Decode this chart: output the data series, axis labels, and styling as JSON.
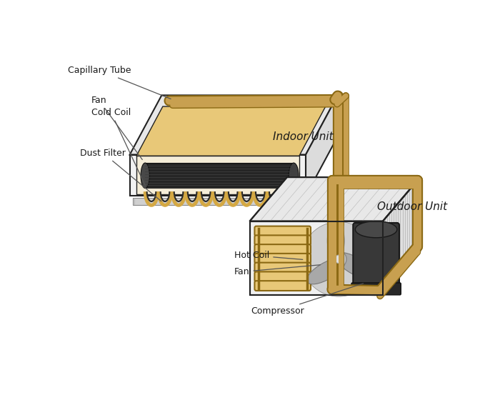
{
  "bg_color": "#ffffff",
  "copper_color": "#C8A050",
  "copper_dark": "#8B6914",
  "copper_light": "#E8C878",
  "box_edge": "#222222",
  "dark_gray": "#2a2a2a",
  "mid_gray": "#787878",
  "light_gray": "#b8b8b8",
  "coil_gold": "#D4A843",
  "coil_gold_light": "#E8C878",
  "fan_gray": "#989898",
  "comp_dark": "#3a3a3a",
  "hatch_gray": "#c8c8c8",
  "labels": {
    "capillary_tube": "Capillary Tube",
    "fan_indoor": "Fan",
    "cold_coil": "Cold Coil",
    "dust_filter": "Dust Filter",
    "indoor_unit": "Indoor Unit",
    "hot_coil": "Hot Coil",
    "fan_outdoor": "Fan",
    "compressor": "Compressor",
    "outdoor_unit": "Outdoor Unit"
  }
}
